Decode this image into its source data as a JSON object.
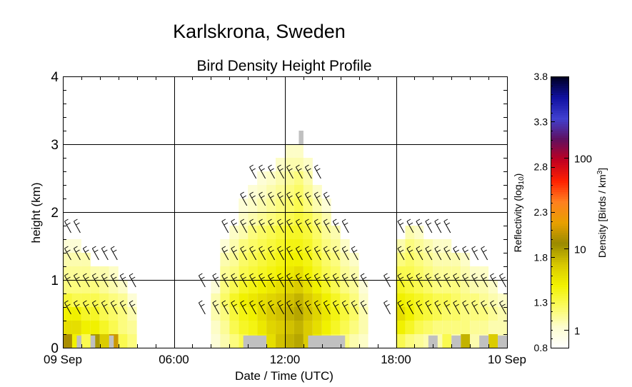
{
  "location_title": "Karlskrona, Sweden",
  "chart_data": {
    "type": "heatmap",
    "title": "Bird Density Height Profile",
    "xlabel": "Date / Time (UTC)",
    "ylabel": "height (km)",
    "x_ticks": [
      "09 Sep",
      "06:00",
      "12:00",
      "18:00",
      "10 Sep"
    ],
    "x_tick_hours": [
      0,
      6,
      12,
      18,
      24
    ],
    "xlim_hours": [
      0,
      24
    ],
    "y_ticks": [
      "0",
      "1",
      "2",
      "3",
      "4"
    ],
    "y_tick_values": [
      0,
      1,
      2,
      3,
      4
    ],
    "ylim_km": [
      0,
      4
    ],
    "grid": true,
    "colorbar": {
      "left_label": "Reflectivity (log10)",
      "right_label": "Density [Birds / km3]",
      "reflectivity_ticks": [
        "0.8",
        "1.3",
        "1.8",
        "2.3",
        "2.8",
        "3.3",
        "3.8"
      ],
      "reflectivity_values": [
        0.8,
        1.3,
        1.8,
        2.3,
        2.8,
        3.3,
        3.8
      ],
      "density_ticks": [
        "1",
        "10",
        "100"
      ],
      "range": [
        0.8,
        3.8
      ],
      "colors": [
        "#ffffff",
        "#fdfdd0",
        "#fbfb60",
        "#f2f200",
        "#d8c800",
        "#9a8a00",
        "#e8a000",
        "#ff8020",
        "#ff2000",
        "#c00020",
        "#601060",
        "#4040d0",
        "#1010a0",
        "#000020"
      ]
    },
    "nodata_color": "#c0c0c0",
    "columns": [
      {
        "t": 0.25,
        "levels": [
          2.0,
          1.6,
          1.5,
          1.35,
          1.2,
          1.15,
          1.1,
          1.0
        ]
      },
      {
        "t": 0.75,
        "levels": [
          1.5,
          1.6,
          1.5,
          1.3,
          1.2,
          1.15,
          1.1,
          1.0
        ]
      },
      {
        "t": 1.25,
        "levels": [
          1.3,
          1.5,
          1.4,
          1.3,
          1.2,
          1.15,
          1.1
        ]
      },
      {
        "t": 1.75,
        "levels": [
          1.9,
          1.5,
          1.4,
          1.3,
          1.2,
          1.1
        ]
      },
      {
        "t": 2.25,
        "levels": [
          1.7,
          1.4,
          1.3,
          1.25,
          1.15,
          1.1
        ]
      },
      {
        "t": 2.75,
        "levels": [
          2.1,
          1.3,
          1.25,
          1.2,
          1.1,
          1.05
        ]
      },
      {
        "t": 3.25,
        "levels": [
          1.3,
          1.2,
          1.2,
          1.15,
          1.05
        ]
      },
      {
        "t": 3.75,
        "levels": [
          1.2,
          1.15,
          1.1,
          1.0
        ]
      },
      {
        "t": 8.25,
        "levels": [
          1.0,
          1.05,
          1.1,
          1.1,
          1.0
        ]
      },
      {
        "t": 8.75,
        "levels": [
          1.1,
          1.15,
          1.2,
          1.25,
          1.2,
          1.15,
          1.1,
          1.0
        ]
      },
      {
        "t": 9.25,
        "levels": [
          1.2,
          1.3,
          1.35,
          1.4,
          1.3,
          1.2,
          1.15,
          1.1,
          1.05
        ]
      },
      {
        "t": 9.75,
        "levels": [
          1.3,
          1.4,
          1.45,
          1.5,
          1.4,
          1.3,
          1.25,
          1.2,
          1.1,
          1.05,
          1.0
        ]
      },
      {
        "t": 10.25,
        "levels": [
          1.4,
          1.45,
          1.5,
          1.55,
          1.45,
          1.35,
          1.3,
          1.25,
          1.2,
          1.1,
          1.05,
          1.0
        ]
      },
      {
        "t": 10.75,
        "levels": [
          1.5,
          1.55,
          1.6,
          1.6,
          1.5,
          1.4,
          1.35,
          1.3,
          1.25,
          1.15,
          1.1,
          1.05,
          1.0
        ]
      },
      {
        "t": 11.25,
        "levels": [
          1.6,
          1.65,
          1.7,
          1.65,
          1.55,
          1.45,
          1.4,
          1.35,
          1.3,
          1.2,
          1.15,
          1.1,
          1.05
        ]
      },
      {
        "t": 11.75,
        "levels": [
          1.75,
          1.7,
          1.75,
          1.7,
          1.6,
          1.5,
          1.45,
          1.4,
          1.35,
          1.25,
          1.2,
          1.15,
          1.1,
          1.05
        ]
      },
      {
        "t": 12.25,
        "levels": [
          1.8,
          1.75,
          1.8,
          1.75,
          1.65,
          1.55,
          1.5,
          1.45,
          1.4,
          1.3,
          1.25,
          1.2,
          1.15,
          1.1,
          1.05
        ]
      },
      {
        "t": 12.75,
        "levels": [
          1.85,
          1.8,
          1.85,
          1.8,
          1.7,
          1.6,
          1.5,
          1.45,
          1.4,
          1.35,
          1.3,
          1.25,
          1.2,
          1.1,
          1.05
        ]
      },
      {
        "t": 13.25,
        "levels": [
          1.7,
          1.7,
          1.75,
          1.7,
          1.6,
          1.5,
          1.45,
          1.4,
          1.35,
          1.3,
          1.2,
          1.15,
          1.1,
          1.05
        ]
      },
      {
        "t": 13.75,
        "levels": [
          1.55,
          1.6,
          1.65,
          1.6,
          1.5,
          1.4,
          1.35,
          1.3,
          1.25,
          1.2,
          1.1,
          1.05
        ]
      },
      {
        "t": 14.25,
        "levels": [
          1.4,
          1.5,
          1.55,
          1.5,
          1.4,
          1.3,
          1.25,
          1.2,
          1.15,
          1.1,
          1.0
        ]
      },
      {
        "t": 14.75,
        "levels": [
          1.3,
          1.4,
          1.45,
          1.4,
          1.3,
          1.25,
          1.2,
          1.15,
          1.1
        ]
      },
      {
        "t": 15.25,
        "levels": [
          1.2,
          1.3,
          1.35,
          1.3,
          1.2,
          1.15,
          1.1,
          1.05
        ]
      },
      {
        "t": 15.75,
        "levels": [
          1.1,
          1.2,
          1.25,
          1.2,
          1.15,
          1.1,
          1.05
        ]
      },
      {
        "t": 16.25,
        "levels": [
          1.05,
          1.1,
          1.1,
          1.05,
          1.0
        ]
      },
      {
        "t": 18.25,
        "levels": [
          1.3,
          1.5,
          1.6,
          1.5,
          1.4,
          1.3,
          1.2,
          1.1
        ]
      },
      {
        "t": 18.75,
        "levels": [
          1.2,
          1.4,
          1.5,
          1.45,
          1.35,
          1.3,
          1.25,
          1.2,
          1.1
        ]
      },
      {
        "t": 19.25,
        "levels": [
          1.15,
          1.3,
          1.4,
          1.4,
          1.3,
          1.25,
          1.2,
          1.15,
          1.05
        ]
      },
      {
        "t": 19.75,
        "levels": [
          1.1,
          1.25,
          1.35,
          1.35,
          1.25,
          1.2,
          1.15,
          1.1
        ]
      },
      {
        "t": 20.25,
        "levels": [
          1.1,
          1.2,
          1.3,
          1.3,
          1.2,
          1.15,
          1.1,
          1.05
        ]
      },
      {
        "t": 20.75,
        "levels": [
          1.3,
          1.2,
          1.25,
          1.3,
          1.2,
          1.15,
          1.1,
          1.05
        ]
      },
      {
        "t": 21.25,
        "levels": [
          1.1,
          1.2,
          1.25,
          1.25,
          1.2,
          1.15,
          1.1
        ]
      },
      {
        "t": 21.75,
        "levels": [
          1.8,
          1.2,
          1.2,
          1.2,
          1.15,
          1.1,
          1.05
        ]
      },
      {
        "t": 22.25,
        "levels": [
          1.1,
          1.15,
          1.2,
          1.2,
          1.1,
          1.05
        ]
      },
      {
        "t": 22.75,
        "levels": [
          1.1,
          1.15,
          1.2,
          1.15,
          1.1,
          1.05
        ]
      },
      {
        "t": 23.25,
        "levels": [
          1.7,
          1.1,
          1.15,
          1.1,
          1.05
        ]
      },
      {
        "t": 23.75,
        "levels": [
          1.1,
          1.1,
          1.1,
          1.05
        ]
      }
    ],
    "nodata_cells": [
      {
        "t0": 0.75,
        "t1": 1.0,
        "h0": 0,
        "h1": 0.18
      },
      {
        "t0": 1.5,
        "t1": 1.75,
        "h0": 0,
        "h1": 0.18
      },
      {
        "t0": 2.5,
        "t1": 2.75,
        "h0": 0,
        "h1": 0.18
      },
      {
        "t0": 9.75,
        "t1": 11.0,
        "h0": 0,
        "h1": 0.18
      },
      {
        "t0": 13.25,
        "t1": 15.25,
        "h0": 0,
        "h1": 0.18
      },
      {
        "t0": 12.75,
        "t1": 13.0,
        "h0": 3.0,
        "h1": 3.2
      },
      {
        "t0": 19.75,
        "t1": 20.25,
        "h0": 0,
        "h1": 0.18
      },
      {
        "t0": 21.0,
        "t1": 21.5,
        "h0": 0,
        "h1": 0.18
      },
      {
        "t0": 22.5,
        "t1": 23.0,
        "h0": 0,
        "h1": 0.18
      },
      {
        "t0": 23.5,
        "t1": 24.0,
        "h0": 0,
        "h1": 0.18
      }
    ],
    "wind_barbs": {
      "heights_km": [
        0.6,
        1.0,
        1.4,
        1.8,
        2.2,
        2.6
      ],
      "times_hours": [
        0.25,
        0.75,
        1.25,
        1.75,
        2.25,
        2.75,
        3.25,
        3.75,
        7.5,
        8.25,
        8.75,
        9.25,
        9.75,
        10.25,
        10.75,
        11.25,
        11.75,
        12.25,
        12.75,
        13.25,
        13.75,
        14.25,
        14.75,
        15.25,
        15.75,
        16.25,
        17.5,
        18.25,
        18.75,
        19.25,
        19.75,
        20.25,
        20.75,
        21.25,
        21.75,
        22.25,
        22.75,
        23.25,
        23.75
      ]
    }
  }
}
